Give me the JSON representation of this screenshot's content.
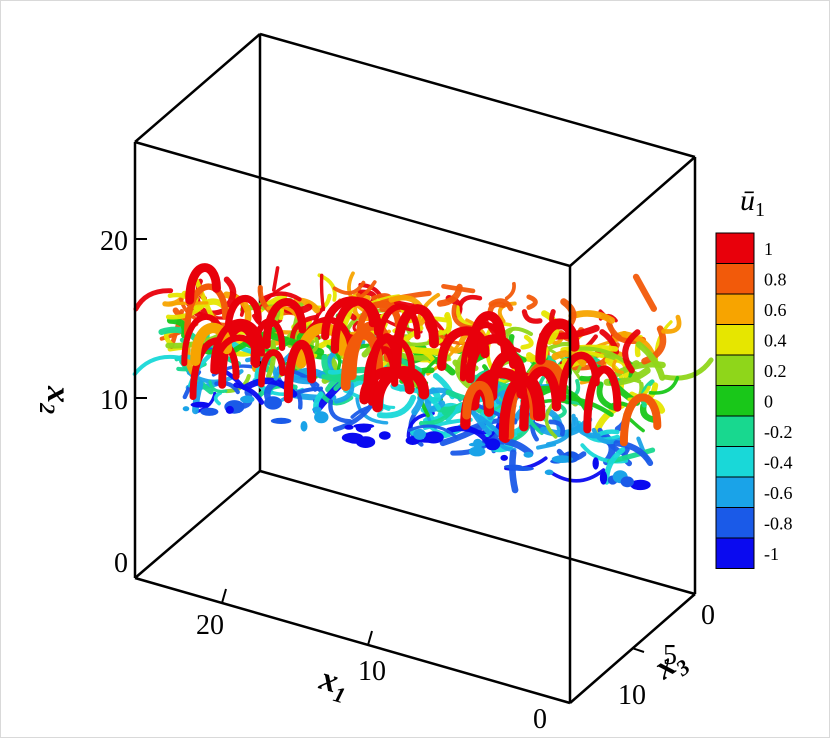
{
  "chart_data": {
    "type": "3d-isosurface",
    "title": "",
    "axes": {
      "x1": {
        "label": "x",
        "subscript": "1",
        "ticks": [
          "20",
          "10",
          "0"
        ]
      },
      "x2": {
        "label": "x",
        "subscript": "2",
        "ticks": [
          "20",
          "10",
          "0"
        ]
      },
      "x3": {
        "label": "x",
        "subscript": "3",
        "ticks": [
          "0",
          "5",
          "10"
        ]
      }
    },
    "colorbar": {
      "variable": "ū",
      "subscript": "1",
      "ticks": [
        "1",
        "0.8",
        "0.6",
        "0.4",
        "0.2",
        "0",
        "-0.2",
        "-0.4",
        "-0.6",
        "-0.8",
        "-1"
      ],
      "colors": [
        "#e8000b",
        "#f25a0a",
        "#f7a400",
        "#e6e600",
        "#8fd61a",
        "#19c719",
        "#18d88f",
        "#19d8d8",
        "#1aa3e8",
        "#1a5ae8",
        "#0a0af0"
      ],
      "range": [
        -1,
        1
      ]
    }
  }
}
